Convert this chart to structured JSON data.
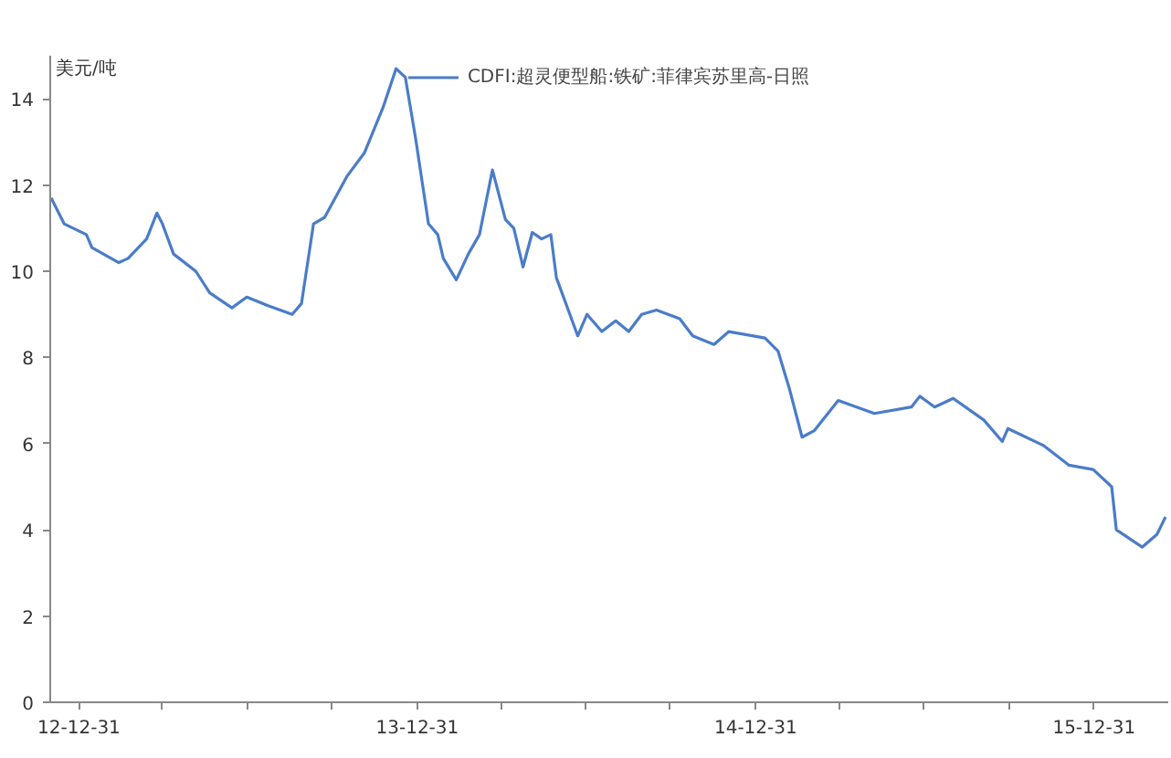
{
  "chart_data": {
    "type": "line",
    "ylabel": "美元/吨",
    "legend": "top",
    "marker": "none",
    "line_style": "solid",
    "xlim": [
      "2012-11-30",
      "2016-03-20"
    ],
    "xticks": [
      {
        "value": "2012-12-31",
        "label": "12-12-31"
      },
      {
        "value": "2013-03-31",
        "label": null
      },
      {
        "value": "2013-06-30",
        "label": null
      },
      {
        "value": "2013-09-30",
        "label": null
      },
      {
        "value": "2013-12-31",
        "label": "13-12-31"
      },
      {
        "value": "2014-03-31",
        "label": null
      },
      {
        "value": "2014-06-30",
        "label": null
      },
      {
        "value": "2014-09-30",
        "label": null
      },
      {
        "value": "2014-12-31",
        "label": "14-12-31"
      },
      {
        "value": "2015-03-31",
        "label": null
      },
      {
        "value": "2015-06-30",
        "label": null
      },
      {
        "value": "2015-09-30",
        "label": null
      },
      {
        "value": "2015-12-31",
        "label": "15-12-31"
      }
    ],
    "ylim": [
      0,
      15
    ],
    "yticks": [
      0,
      2,
      4,
      6,
      8,
      10,
      12,
      14
    ],
    "x": [
      "2012-12-01",
      "2012-12-15",
      "2013-01-08",
      "2013-01-14",
      "2013-02-12",
      "2013-02-22",
      "2013-03-14",
      "2013-03-25",
      "2013-03-31",
      "2013-04-12",
      "2013-05-06",
      "2013-05-21",
      "2013-06-14",
      "2013-06-30",
      "2013-07-23",
      "2013-08-18",
      "2013-08-28",
      "2013-09-10",
      "2013-09-22",
      "2013-10-16",
      "2013-11-04",
      "2013-11-24",
      "2013-12-08",
      "2013-12-18",
      "2013-12-29",
      "2014-01-12",
      "2014-01-22",
      "2014-01-28",
      "2014-02-11",
      "2014-02-24",
      "2014-03-08",
      "2014-03-22",
      "2014-04-05",
      "2014-04-14",
      "2014-04-24",
      "2014-05-04",
      "2014-05-14",
      "2014-05-24",
      "2014-05-30",
      "2014-06-22",
      "2014-07-02",
      "2014-07-18",
      "2014-08-02",
      "2014-08-16",
      "2014-08-30",
      "2014-09-15",
      "2014-10-10",
      "2014-10-24",
      "2014-11-16",
      "2014-12-02",
      "2015-01-10",
      "2015-01-24",
      "2015-02-05",
      "2015-02-19",
      "2015-03-04",
      "2015-03-30",
      "2015-05-08",
      "2015-06-17",
      "2015-06-26",
      "2015-07-12",
      "2015-08-01",
      "2015-09-03",
      "2015-09-23",
      "2015-09-29",
      "2015-11-07",
      "2015-12-04",
      "2015-12-30",
      "2016-01-19",
      "2016-01-24",
      "2016-02-21",
      "2016-03-08",
      "2016-03-17"
    ],
    "series": [
      {
        "name": "CDFI:超灵便型船:铁矿:菲律宾苏里高-日照",
        "color": "#4a7cc9",
        "values": [
          11.7,
          11.1,
          10.85,
          10.55,
          10.2,
          10.3,
          10.75,
          11.35,
          11.1,
          10.4,
          10.0,
          9.5,
          9.15,
          9.4,
          9.2,
          9.0,
          9.25,
          11.1,
          11.25,
          12.2,
          12.75,
          13.8,
          14.7,
          14.5,
          13.1,
          11.1,
          10.85,
          10.3,
          9.8,
          10.4,
          10.85,
          12.35,
          11.2,
          11.0,
          10.1,
          10.9,
          10.75,
          10.85,
          9.85,
          8.5,
          9.0,
          8.6,
          8.85,
          8.6,
          9.0,
          9.1,
          8.9,
          8.5,
          8.3,
          8.6,
          8.45,
          8.15,
          7.3,
          6.15,
          6.3,
          7.0,
          6.7,
          6.85,
          7.1,
          6.85,
          7.05,
          6.55,
          6.05,
          6.35,
          5.95,
          5.5,
          5.4,
          5.0,
          4.0,
          3.6,
          3.9,
          4.3
        ]
      }
    ]
  }
}
